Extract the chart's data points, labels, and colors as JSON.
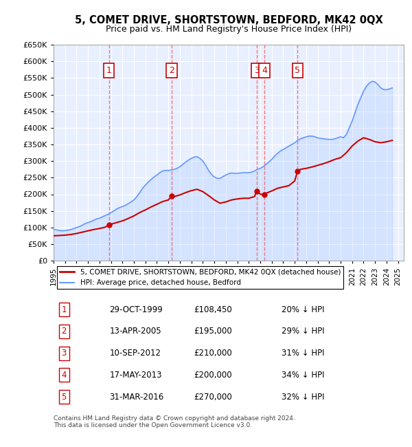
{
  "title": "5, COMET DRIVE, SHORTSTOWN, BEDFORD, MK42 0QX",
  "subtitle": "Price paid vs. HM Land Registry's House Price Index (HPI)",
  "ylabel": "",
  "ylim": [
    0,
    650000
  ],
  "yticks": [
    0,
    50000,
    100000,
    150000,
    200000,
    250000,
    300000,
    350000,
    400000,
    450000,
    500000,
    550000,
    600000,
    650000
  ],
  "ytick_labels": [
    "£0",
    "£50K",
    "£100K",
    "£150K",
    "£200K",
    "£250K",
    "£300K",
    "£350K",
    "£400K",
    "£450K",
    "£500K",
    "£550K",
    "£600K",
    "£650K"
  ],
  "xlim_start": 1995.0,
  "xlim_end": 2025.5,
  "background_color": "#ffffff",
  "plot_bg_color": "#e8f0ff",
  "grid_color": "#ffffff",
  "hpi_line_color": "#6699ff",
  "price_line_color": "#cc0000",
  "sale_marker_color": "#cc0000",
  "sale_number_color": "#cc0000",
  "sale_box_color": "#cc0000",
  "dashed_line_color": "#ff6666",
  "transactions": [
    {
      "num": 1,
      "date_decimal": 1999.83,
      "price": 108450,
      "label": "1"
    },
    {
      "num": 2,
      "date_decimal": 2005.28,
      "price": 195000,
      "label": "2"
    },
    {
      "num": 3,
      "date_decimal": 2012.69,
      "price": 210000,
      "label": "3"
    },
    {
      "num": 4,
      "date_decimal": 2013.37,
      "price": 200000,
      "label": "4"
    },
    {
      "num": 5,
      "date_decimal": 2016.25,
      "price": 270000,
      "label": "5"
    }
  ],
  "legend_entries": [
    {
      "label": "5, COMET DRIVE, SHORTSTOWN, BEDFORD, MK42 0QX (detached house)",
      "color": "#cc0000",
      "lw": 2
    },
    {
      "label": "HPI: Average price, detached house, Bedford",
      "color": "#6699ff",
      "lw": 1.5
    }
  ],
  "table_rows": [
    {
      "num": "1",
      "date": "29-OCT-1999",
      "price": "£108,450",
      "pct": "20% ↓ HPI"
    },
    {
      "num": "2",
      "date": "13-APR-2005",
      "price": "£195,000",
      "pct": "29% ↓ HPI"
    },
    {
      "num": "3",
      "date": "10-SEP-2012",
      "price": "£210,000",
      "pct": "31% ↓ HPI"
    },
    {
      "num": "4",
      "date": "17-MAY-2013",
      "price": "£200,000",
      "pct": "34% ↓ HPI"
    },
    {
      "num": "5",
      "date": "31-MAR-2016",
      "price": "£270,000",
      "pct": "32% ↓ HPI"
    }
  ],
  "footer": "Contains HM Land Registry data © Crown copyright and database right 2024.\nThis data is licensed under the Open Government Licence v3.0.",
  "hpi_data_x": [
    1995.0,
    1995.25,
    1995.5,
    1995.75,
    1996.0,
    1996.25,
    1996.5,
    1996.75,
    1997.0,
    1997.25,
    1997.5,
    1997.75,
    1998.0,
    1998.25,
    1998.5,
    1998.75,
    1999.0,
    1999.25,
    1999.5,
    1999.75,
    2000.0,
    2000.25,
    2000.5,
    2000.75,
    2001.0,
    2001.25,
    2001.5,
    2001.75,
    2002.0,
    2002.25,
    2002.5,
    2002.75,
    2003.0,
    2003.25,
    2003.5,
    2003.75,
    2004.0,
    2004.25,
    2004.5,
    2004.75,
    2005.0,
    2005.25,
    2005.5,
    2005.75,
    2006.0,
    2006.25,
    2006.5,
    2006.75,
    2007.0,
    2007.25,
    2007.5,
    2007.75,
    2008.0,
    2008.25,
    2008.5,
    2008.75,
    2009.0,
    2009.25,
    2009.5,
    2009.75,
    2010.0,
    2010.25,
    2010.5,
    2010.75,
    2011.0,
    2011.25,
    2011.5,
    2011.75,
    2012.0,
    2012.25,
    2012.5,
    2012.75,
    2013.0,
    2013.25,
    2013.5,
    2013.75,
    2014.0,
    2014.25,
    2014.5,
    2014.75,
    2015.0,
    2015.25,
    2015.5,
    2015.75,
    2016.0,
    2016.25,
    2016.5,
    2016.75,
    2017.0,
    2017.25,
    2017.5,
    2017.75,
    2018.0,
    2018.25,
    2018.5,
    2018.75,
    2019.0,
    2019.25,
    2019.5,
    2019.75,
    2020.0,
    2020.25,
    2020.5,
    2020.75,
    2021.0,
    2021.25,
    2021.5,
    2021.75,
    2022.0,
    2022.25,
    2022.5,
    2022.75,
    2023.0,
    2023.25,
    2023.5,
    2023.75,
    2024.0,
    2024.25,
    2024.5
  ],
  "hpi_data_y": [
    95000,
    93000,
    91000,
    90000,
    91000,
    92000,
    94000,
    97000,
    100000,
    103000,
    107000,
    112000,
    115000,
    118000,
    122000,
    126000,
    128000,
    132000,
    136000,
    140000,
    145000,
    150000,
    156000,
    160000,
    163000,
    167000,
    172000,
    177000,
    183000,
    193000,
    205000,
    218000,
    228000,
    237000,
    245000,
    252000,
    258000,
    265000,
    270000,
    272000,
    272000,
    273000,
    275000,
    278000,
    283000,
    290000,
    297000,
    303000,
    308000,
    312000,
    313000,
    308000,
    300000,
    287000,
    272000,
    260000,
    252000,
    248000,
    248000,
    253000,
    258000,
    262000,
    264000,
    263000,
    263000,
    264000,
    265000,
    265000,
    265000,
    267000,
    270000,
    275000,
    278000,
    283000,
    290000,
    297000,
    305000,
    315000,
    323000,
    330000,
    335000,
    340000,
    345000,
    350000,
    355000,
    362000,
    367000,
    370000,
    373000,
    375000,
    375000,
    373000,
    370000,
    368000,
    367000,
    366000,
    365000,
    365000,
    367000,
    370000,
    373000,
    370000,
    380000,
    400000,
    420000,
    445000,
    470000,
    490000,
    510000,
    525000,
    535000,
    540000,
    538000,
    530000,
    520000,
    515000,
    515000,
    517000,
    520000
  ],
  "price_data_x": [
    1995.0,
    1995.5,
    1996.0,
    1996.5,
    1997.0,
    1997.5,
    1998.0,
    1998.5,
    1999.0,
    1999.5,
    1999.83,
    2000.0,
    2000.5,
    2001.0,
    2001.5,
    2002.0,
    2002.5,
    2003.0,
    2003.5,
    2004.0,
    2004.5,
    2005.0,
    2005.28,
    2005.5,
    2006.0,
    2006.5,
    2007.0,
    2007.5,
    2008.0,
    2008.5,
    2009.0,
    2009.5,
    2010.0,
    2010.5,
    2011.0,
    2011.5,
    2012.0,
    2012.5,
    2012.69,
    2013.0,
    2013.37,
    2013.5,
    2014.0,
    2014.5,
    2015.0,
    2015.5,
    2016.0,
    2016.25,
    2016.5,
    2017.0,
    2017.5,
    2018.0,
    2018.5,
    2019.0,
    2019.5,
    2020.0,
    2020.5,
    2021.0,
    2021.5,
    2022.0,
    2022.5,
    2023.0,
    2023.5,
    2024.0,
    2024.5
  ],
  "price_data_y": [
    75000,
    76000,
    77000,
    79000,
    82000,
    86000,
    90000,
    94000,
    97000,
    101000,
    108450,
    110000,
    115000,
    120000,
    127000,
    135000,
    145000,
    153000,
    162000,
    170000,
    178000,
    183000,
    195000,
    193000,
    198000,
    205000,
    211000,
    215000,
    208000,
    196000,
    183000,
    173000,
    177000,
    183000,
    186000,
    188000,
    188000,
    193000,
    210000,
    200000,
    200000,
    203000,
    210000,
    218000,
    222000,
    226000,
    240000,
    270000,
    275000,
    278000,
    282000,
    287000,
    292000,
    298000,
    305000,
    310000,
    325000,
    345000,
    360000,
    370000,
    365000,
    358000,
    355000,
    358000,
    362000
  ]
}
